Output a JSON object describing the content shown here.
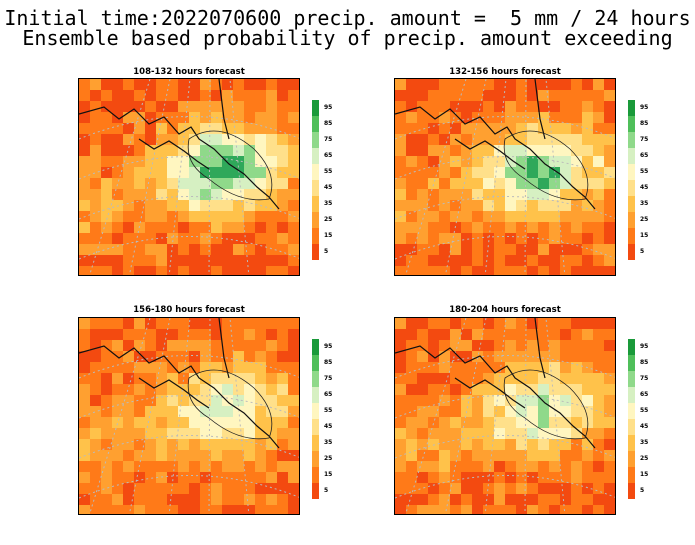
{
  "header": {
    "line1": "Initial time:2022070600 precip. amount =  5 mm / 24 hours",
    "line2": "Ensemble based probability of precip. amount exceeding"
  },
  "panels": [
    {
      "title": "108-132 hours forecast",
      "wet_level": 0.9
    },
    {
      "title": "132-156 hours forecast",
      "wet_level": 0.75
    },
    {
      "title": "156-180 hours forecast",
      "wet_level": 0.55
    },
    {
      "title": "180-204 hours forecast",
      "wet_level": 0.6
    }
  ],
  "legend": {
    "labels": [
      "95",
      "85",
      "75",
      "65",
      "55",
      "45",
      "35",
      "25",
      "15",
      "5"
    ],
    "colors": [
      "#1a9a3a",
      "#4fbf5a",
      "#8fd98a",
      "#d6f0c2",
      "#fff6c0",
      "#ffe08a",
      "#ffc24a",
      "#ffa030",
      "#ff7a18",
      "#f34a10"
    ]
  },
  "colors": {
    "low": "#f34a10",
    "mid_low": "#ff7a18",
    "mid": "#ffa030",
    "mid_high": "#ffc24a",
    "pale": "#ffe08a",
    "cream": "#fff6c0",
    "light_green": "#d6f0c2",
    "green": "#8fd98a",
    "dark_green": "#2fa85a"
  }
}
